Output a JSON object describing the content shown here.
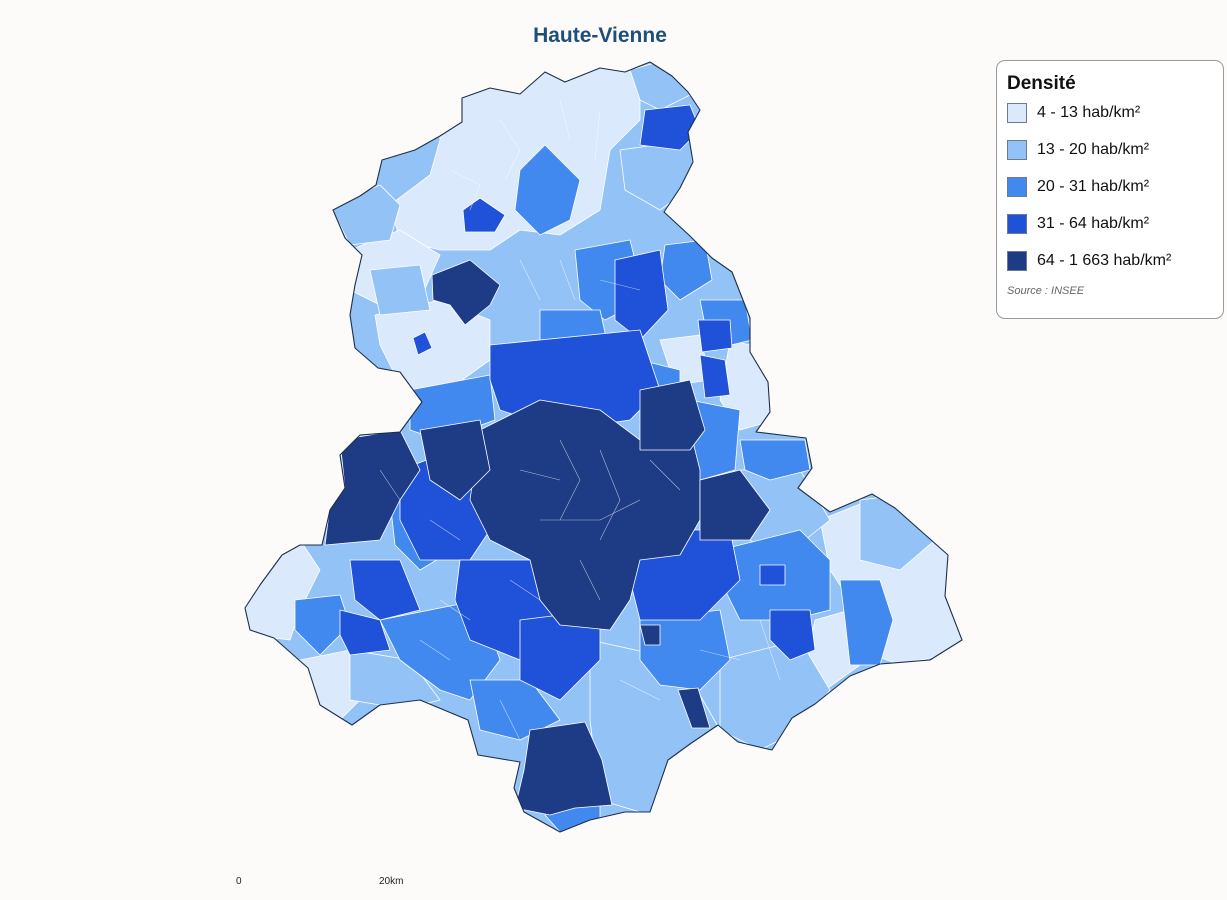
{
  "title": "Haute-Vienne",
  "colors": {
    "background": "#fcfbfa",
    "title": "#1e4e79",
    "outline": "#1b2f4a",
    "inner_border": "#ffffff"
  },
  "legend": {
    "title": "Densité",
    "classes": [
      {
        "label": "4 - 13 hab/km²",
        "color": "#dbe9fc"
      },
      {
        "label": "13 - 20 hab/km²",
        "color": "#93c2f7"
      },
      {
        "label": "20 - 31 hab/km²",
        "color": "#4189ee"
      },
      {
        "label": "31 - 64 hab/km²",
        "color": "#1f52d9"
      },
      {
        "label": "64 - 1 663 hab/km²",
        "color": "#1e3b86"
      }
    ],
    "source": "Source : INSEE"
  },
  "scale_bar": {
    "start_label": "0",
    "end_label": "20km"
  }
}
